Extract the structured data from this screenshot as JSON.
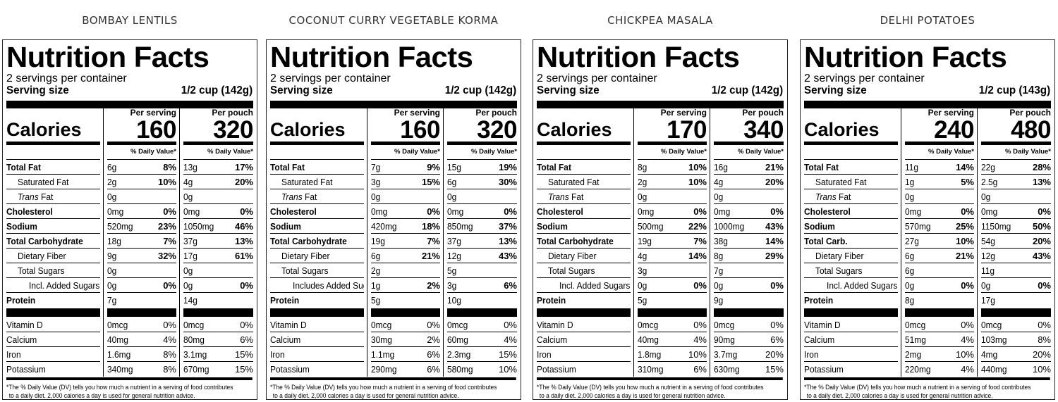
{
  "label_text": {
    "heading": "Nutrition Facts",
    "per_serving": "Per serving",
    "per_pouch": "Per pouch",
    "calories": "Calories",
    "daily_value": "% Daily Value*",
    "footnote_1": "*The % Daily Value (DV) tells you how much a nutrient in a serving of food contributes",
    "footnote_2": "to a daily diet. 2,000 calories a day is used for general nutrition advice.",
    "servings_per_container": "2 servings per container",
    "serving_size_label": "Serving size"
  },
  "products": [
    {
      "title": "BOMBAY LENTILS",
      "serving_size": "1/2 cup (142g)",
      "calories_serving": "160",
      "calories_pouch": "320",
      "nutrients": [
        {
          "label": "Total Fat",
          "bold": true,
          "indent": 0,
          "s": "6g",
          "sdv": "8%",
          "p": "13g",
          "pdv": "17%"
        },
        {
          "label": "Saturated Fat",
          "bold": false,
          "indent": 1,
          "s": "2g",
          "sdv": "10%",
          "p": "4g",
          "pdv": "20%"
        },
        {
          "label_italic": "Trans",
          "label": " Fat",
          "bold": false,
          "indent": 1,
          "s": "0g",
          "sdv": "",
          "p": "0g",
          "pdv": ""
        },
        {
          "label": "Cholesterol",
          "bold": true,
          "indent": 0,
          "s": "0mg",
          "sdv": "0%",
          "p": "0mg",
          "pdv": "0%"
        },
        {
          "label": "Sodium",
          "bold": true,
          "indent": 0,
          "s": "520mg",
          "sdv": "23%",
          "p": "1050mg",
          "pdv": "46%"
        },
        {
          "label": "Total Carbohydrate",
          "bold": true,
          "indent": 0,
          "s": "18g",
          "sdv": "7%",
          "p": "37g",
          "pdv": "13%"
        },
        {
          "label": "Dietary Fiber",
          "bold": false,
          "indent": 1,
          "s": "9g",
          "sdv": "32%",
          "p": "17g",
          "pdv": "61%"
        },
        {
          "label": "Total Sugars",
          "bold": false,
          "indent": 1,
          "s": "0g",
          "sdv": "",
          "p": "0g",
          "pdv": ""
        },
        {
          "label": "Incl. Added Sugars",
          "bold": false,
          "indent": 2,
          "s": "0g",
          "sdv": "0%",
          "p": "0g",
          "pdv": "0%"
        },
        {
          "label": "Protein",
          "bold": true,
          "indent": 0,
          "s": "7g",
          "sdv": "",
          "p": "14g",
          "pdv": ""
        }
      ],
      "vitamins": [
        {
          "label": "Vitamin D",
          "s": "0mcg",
          "sdv": "0%",
          "p": "0mcg",
          "pdv": "0%"
        },
        {
          "label": "Calcium",
          "s": "40mg",
          "sdv": "4%",
          "p": "80mg",
          "pdv": "6%"
        },
        {
          "label": "Iron",
          "s": "1.6mg",
          "sdv": "8%",
          "p": "3.1mg",
          "pdv": "15%"
        },
        {
          "label": "Potassium",
          "s": "340mg",
          "sdv": "8%",
          "p": "670mg",
          "pdv": "15%"
        }
      ]
    },
    {
      "title": "COCONUT CURRY VEGETABLE KORMA",
      "serving_size": "1/2 cup (142g)",
      "calories_serving": "160",
      "calories_pouch": "320",
      "nutrients": [
        {
          "label": "Total Fat",
          "bold": true,
          "indent": 0,
          "s": "7g",
          "sdv": "9%",
          "p": "15g",
          "pdv": "19%"
        },
        {
          "label": "Saturated Fat",
          "bold": false,
          "indent": 1,
          "s": "3g",
          "sdv": "15%",
          "p": "6g",
          "pdv": "30%"
        },
        {
          "label_italic": "Trans",
          "label": " Fat",
          "bold": false,
          "indent": 1,
          "s": "0g",
          "sdv": "",
          "p": "0g",
          "pdv": ""
        },
        {
          "label": "Cholesterol",
          "bold": true,
          "indent": 0,
          "s": "0mg",
          "sdv": "0%",
          "p": "0mg",
          "pdv": "0%"
        },
        {
          "label": "Sodium",
          "bold": true,
          "indent": 0,
          "s": "420mg",
          "sdv": "18%",
          "p": "850mg",
          "pdv": "37%"
        },
        {
          "label": "Total Carbohydrate",
          "bold": true,
          "indent": 0,
          "s": "19g",
          "sdv": "7%",
          "p": "37g",
          "pdv": "13%"
        },
        {
          "label": "Dietary Fiber",
          "bold": false,
          "indent": 1,
          "s": "6g",
          "sdv": "21%",
          "p": "12g",
          "pdv": "43%"
        },
        {
          "label": "Total Sugars",
          "bold": false,
          "indent": 1,
          "s": "2g",
          "sdv": "",
          "p": "5g",
          "pdv": ""
        },
        {
          "label": "Includes Added Sugars",
          "bold": false,
          "indent": 2,
          "s": "1g",
          "sdv": "2%",
          "p": "3g",
          "pdv": "6%"
        },
        {
          "label": "Protein",
          "bold": true,
          "indent": 0,
          "s": "5g",
          "sdv": "",
          "p": "10g",
          "pdv": ""
        }
      ],
      "vitamins": [
        {
          "label": "Vitamin D",
          "s": "0mcg",
          "sdv": "0%",
          "p": "0mcg",
          "pdv": "0%"
        },
        {
          "label": "Calcium",
          "s": "30mg",
          "sdv": "2%",
          "p": "60mg",
          "pdv": "4%"
        },
        {
          "label": "Iron",
          "s": "1.1mg",
          "sdv": "6%",
          "p": "2.3mg",
          "pdv": "15%"
        },
        {
          "label": "Potassium",
          "s": "290mg",
          "sdv": "6%",
          "p": "580mg",
          "pdv": "10%"
        }
      ]
    },
    {
      "title": "CHICKPEA MASALA",
      "serving_size": "1/2 cup (142g)",
      "calories_serving": "170",
      "calories_pouch": "340",
      "nutrients": [
        {
          "label": "Total Fat",
          "bold": true,
          "indent": 0,
          "s": "8g",
          "sdv": "10%",
          "p": "16g",
          "pdv": "21%"
        },
        {
          "label": "Saturated Fat",
          "bold": false,
          "indent": 1,
          "s": "2g",
          "sdv": "10%",
          "p": "4g",
          "pdv": "20%"
        },
        {
          "label_italic": "Trans",
          "label": " Fat",
          "bold": false,
          "indent": 1,
          "s": "0g",
          "sdv": "",
          "p": "0g",
          "pdv": ""
        },
        {
          "label": "Cholesterol",
          "bold": true,
          "indent": 0,
          "s": "0mg",
          "sdv": "0%",
          "p": "0mg",
          "pdv": "0%"
        },
        {
          "label": "Sodium",
          "bold": true,
          "indent": 0,
          "s": "500mg",
          "sdv": "22%",
          "p": "1000mg",
          "pdv": "43%"
        },
        {
          "label": "Total Carbohydrate",
          "bold": true,
          "indent": 0,
          "s": "19g",
          "sdv": "7%",
          "p": "38g",
          "pdv": "14%"
        },
        {
          "label": "Dietary Fiber",
          "bold": false,
          "indent": 1,
          "s": "4g",
          "sdv": "14%",
          "p": "8g",
          "pdv": "29%"
        },
        {
          "label": "Total Sugars",
          "bold": false,
          "indent": 1,
          "s": "3g",
          "sdv": "",
          "p": "7g",
          "pdv": ""
        },
        {
          "label": "Incl. Added Sugars",
          "bold": false,
          "indent": 2,
          "s": "0g",
          "sdv": "0%",
          "p": "0g",
          "pdv": "0%"
        },
        {
          "label": "Protein",
          "bold": true,
          "indent": 0,
          "s": "5g",
          "sdv": "",
          "p": "9g",
          "pdv": ""
        }
      ],
      "vitamins": [
        {
          "label": "Vitamin D",
          "s": "0mcg",
          "sdv": "0%",
          "p": "0mcg",
          "pdv": "0%"
        },
        {
          "label": "Calcium",
          "s": "40mg",
          "sdv": "4%",
          "p": "90mg",
          "pdv": "6%"
        },
        {
          "label": "Iron",
          "s": "1.8mg",
          "sdv": "10%",
          "p": "3.7mg",
          "pdv": "20%"
        },
        {
          "label": "Potassium",
          "s": "310mg",
          "sdv": "6%",
          "p": "630mg",
          "pdv": "15%"
        }
      ]
    },
    {
      "title": "DELHI POTATOES",
      "serving_size": "1/2 cup (143g)",
      "calories_serving": "240",
      "calories_pouch": "480",
      "nutrients": [
        {
          "label": "Total Fat",
          "bold": true,
          "indent": 0,
          "s": "11g",
          "sdv": "14%",
          "p": "22g",
          "pdv": "28%"
        },
        {
          "label": "Saturated Fat",
          "bold": false,
          "indent": 1,
          "s": "1g",
          "sdv": "5%",
          "p": "2.5g",
          "pdv": "13%"
        },
        {
          "label_italic": "Trans",
          "label": " Fat",
          "bold": false,
          "indent": 1,
          "s": "0g",
          "sdv": "",
          "p": "0g",
          "pdv": ""
        },
        {
          "label": "Cholesterol",
          "bold": true,
          "indent": 0,
          "s": "0mg",
          "sdv": "0%",
          "p": "0mg",
          "pdv": "0%"
        },
        {
          "label": "Sodium",
          "bold": true,
          "indent": 0,
          "s": "570mg",
          "sdv": "25%",
          "p": "1150mg",
          "pdv": "50%"
        },
        {
          "label": "Total Carb.",
          "bold": true,
          "indent": 0,
          "s": "27g",
          "sdv": "10%",
          "p": "54g",
          "pdv": "20%"
        },
        {
          "label": "Dietary Fiber",
          "bold": false,
          "indent": 1,
          "s": "6g",
          "sdv": "21%",
          "p": "12g",
          "pdv": "43%"
        },
        {
          "label": "Total Sugars",
          "bold": false,
          "indent": 1,
          "s": "6g",
          "sdv": "",
          "p": "11g",
          "pdv": ""
        },
        {
          "label": "Incl. Added Sugars",
          "bold": false,
          "indent": 2,
          "s": "0g",
          "sdv": "0%",
          "p": "0g",
          "pdv": "0%"
        },
        {
          "label": "Protein",
          "bold": true,
          "indent": 0,
          "s": "8g",
          "sdv": "",
          "p": "17g",
          "pdv": ""
        }
      ],
      "vitamins": [
        {
          "label": "Vitamin D",
          "s": "0mcg",
          "sdv": "0%",
          "p": "0mcg",
          "pdv": "0%"
        },
        {
          "label": "Calcium",
          "s": "51mg",
          "sdv": "4%",
          "p": "103mg",
          "pdv": "8%"
        },
        {
          "label": "Iron",
          "s": "2mg",
          "sdv": "10%",
          "p": "4mg",
          "pdv": "20%"
        },
        {
          "label": "Potassium",
          "s": "220mg",
          "sdv": "4%",
          "p": "440mg",
          "pdv": "10%"
        }
      ]
    }
  ]
}
